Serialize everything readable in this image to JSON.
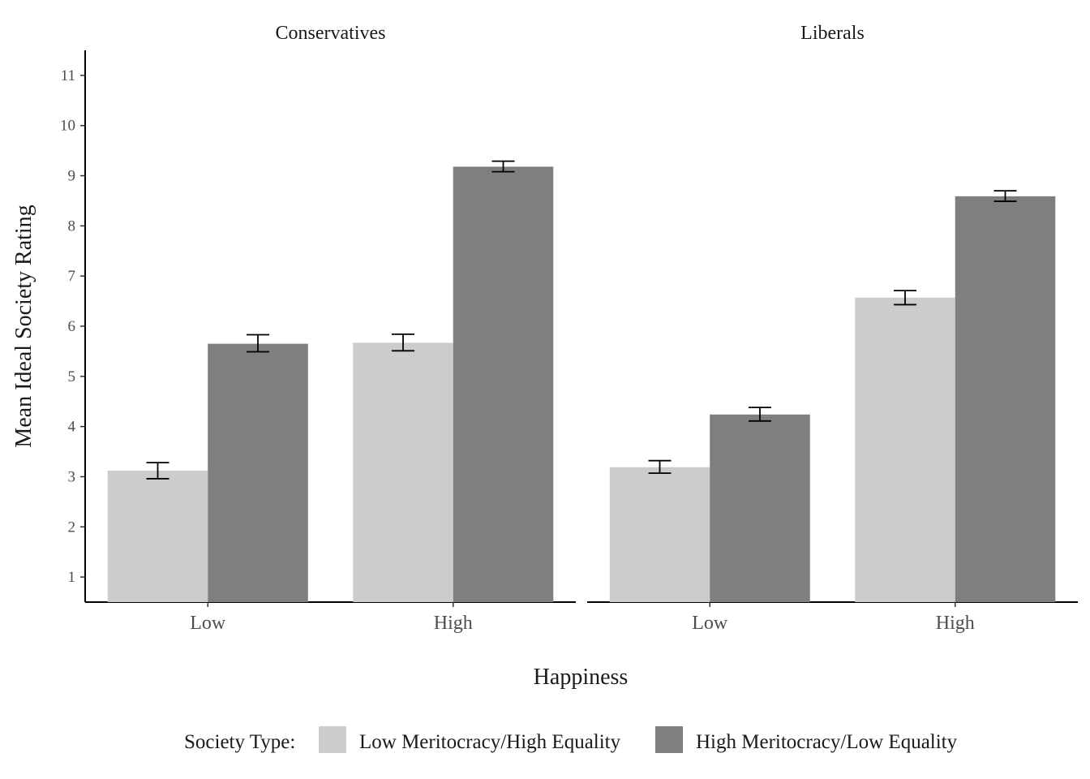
{
  "chart_data": {
    "type": "bar",
    "ylabel": "Mean Ideal Society Rating",
    "xlabel": "Happiness",
    "ylim": [
      0.5,
      11.5
    ],
    "y_ticks": [
      "1",
      "2",
      "3",
      "4",
      "5",
      "6",
      "7",
      "8",
      "9",
      "10",
      "11"
    ],
    "categories": [
      "Low",
      "High"
    ],
    "grid": false,
    "legend": {
      "position": "bottom",
      "title": "Society Type:",
      "items": [
        "Low Meritocracy/High Equality",
        "High Meritocracy/Low Equality"
      ]
    },
    "colors": [
      "#cccccc",
      "#7f7f7f"
    ],
    "panels": [
      {
        "title": "Conservatives",
        "series": [
          {
            "values": [
              3.12,
              5.67
            ],
            "err_low": [
              2.96,
              5.51
            ],
            "err_high": [
              3.28,
              5.84
            ]
          },
          {
            "values": [
              5.65,
              9.18
            ],
            "err_low": [
              5.49,
              9.08
            ],
            "err_high": [
              5.83,
              9.29
            ]
          }
        ]
      },
      {
        "title": "Liberals",
        "series": [
          {
            "values": [
              3.19,
              6.57
            ],
            "err_low": [
              3.07,
              6.43
            ],
            "err_high": [
              3.32,
              6.71
            ]
          },
          {
            "values": [
              4.24,
              8.59
            ],
            "err_low": [
              4.11,
              8.49
            ],
            "err_high": [
              4.38,
              8.7
            ]
          }
        ]
      }
    ]
  }
}
